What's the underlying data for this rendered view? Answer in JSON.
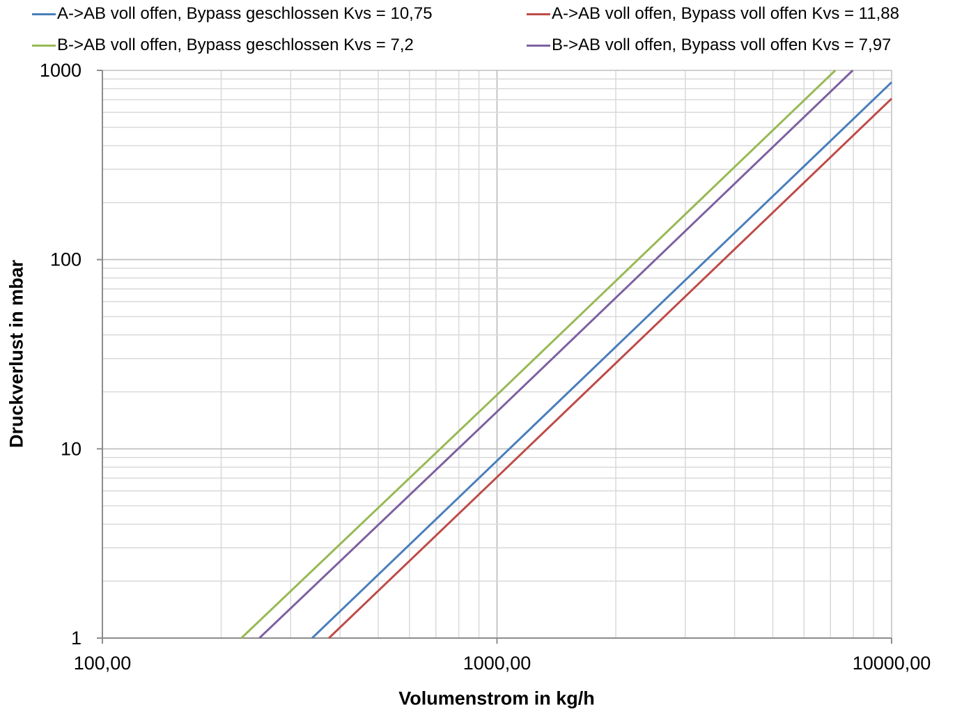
{
  "chart_data": {
    "type": "line",
    "title": "",
    "xlabel": "Volumenstrom in kg/h",
    "ylabel": "Druckverlust in mbar",
    "xscale": "log",
    "yscale": "log",
    "xlim": [
      100,
      10000
    ],
    "ylim": [
      1,
      1000
    ],
    "x_ticks": [
      "100,00",
      "1000,00",
      "10000,00"
    ],
    "y_ticks": [
      "1",
      "10",
      "100",
      "1000"
    ],
    "grid": true,
    "legend_position": "top",
    "series": [
      {
        "name": "A->AB voll offen, Bypass geschlossen Kvs = 10,75",
        "color": "#4a7ebb",
        "x": [
          340,
          1000,
          10000
        ],
        "y": [
          1,
          8.65,
          865
        ]
      },
      {
        "name": "A->AB voll offen, Bypass voll offen Kvs = 11,88",
        "color": "#be4b48",
        "x": [
          375,
          1000,
          10000
        ],
        "y": [
          1,
          7.09,
          709
        ]
      },
      {
        "name": "B->AB voll offen, Bypass geschlossen Kvs = 7,2",
        "color": "#98b954",
        "x": [
          225,
          1000,
          7200
        ],
        "y": [
          1,
          19.3,
          1000
        ]
      },
      {
        "name": "B->AB voll offen, Bypass voll offen Kvs = 7,97",
        "color": "#7d60a0",
        "x": [
          250,
          1000,
          7970
        ],
        "y": [
          1,
          15.7,
          1000
        ]
      }
    ]
  }
}
